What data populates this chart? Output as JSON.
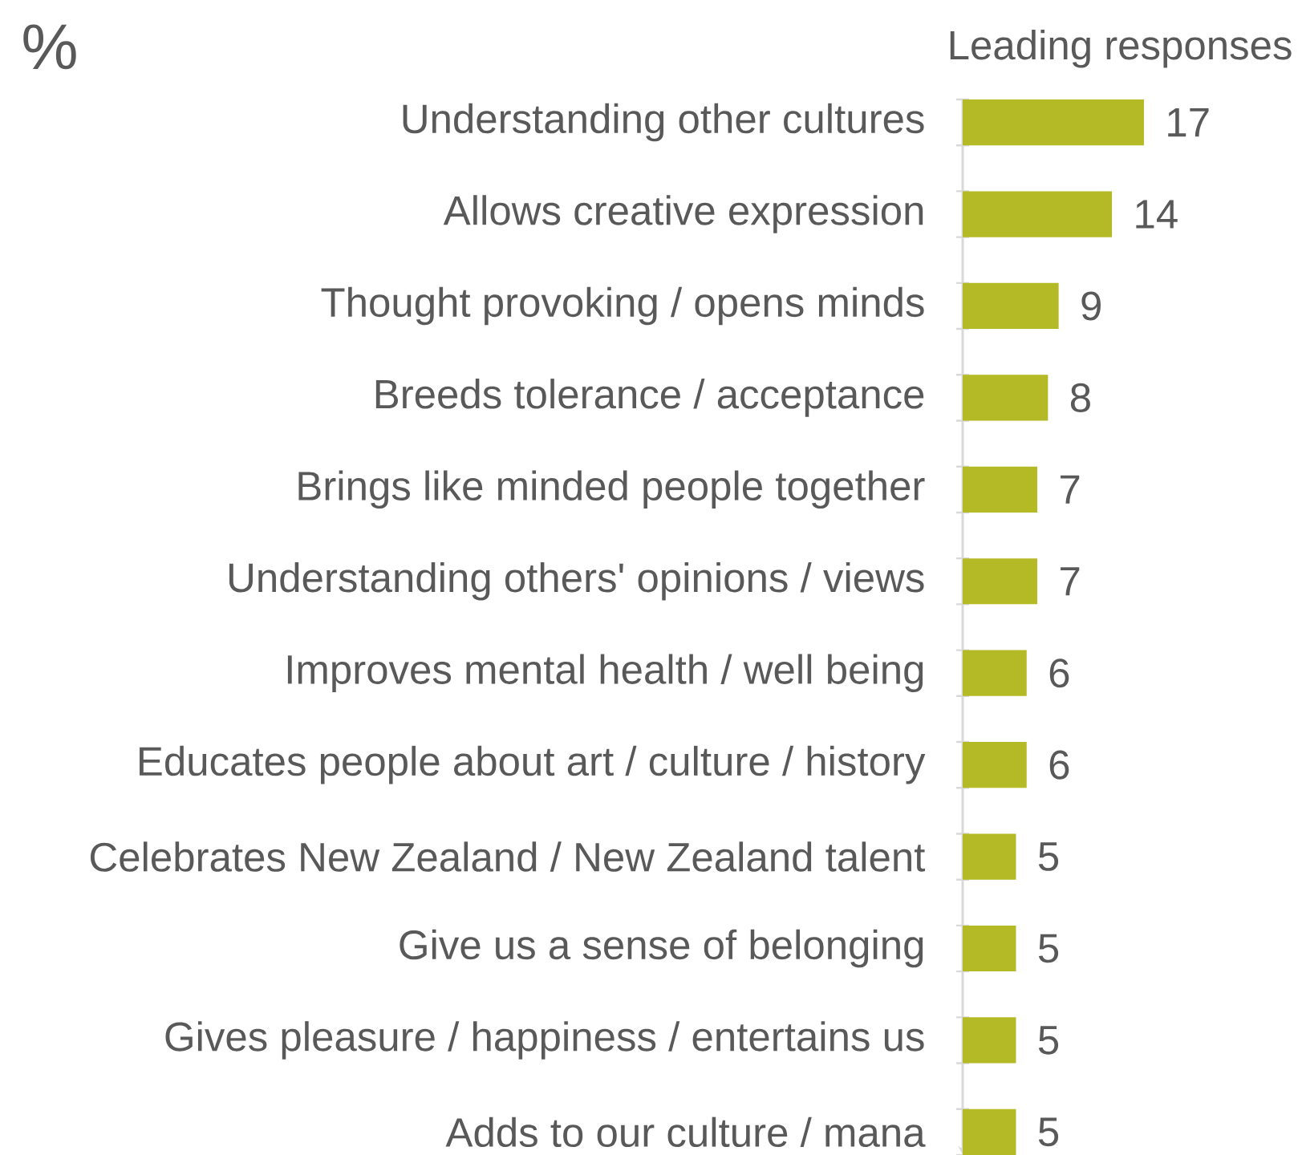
{
  "chart_data": {
    "type": "bar",
    "orientation": "horizontal",
    "title": "%",
    "subtitle": "Leading responses",
    "categories": [
      "Understanding other cultures",
      "Allows creative expression",
      "Thought provoking / opens minds",
      "Breeds tolerance / acceptance",
      "Brings like minded people together",
      "Understanding others' opinions / views",
      "Improves mental health / well being",
      "Educates people about art / culture / history",
      "Celebrates New Zealand / New Zealand talent",
      "Give us a sense of belonging",
      "Gives pleasure / happiness / entertains us",
      "Adds to our culture / mana"
    ],
    "values": [
      17,
      14,
      9,
      8,
      7,
      7,
      6,
      6,
      5,
      5,
      5,
      5
    ],
    "color": "#b4ba25",
    "data_labels": true
  }
}
